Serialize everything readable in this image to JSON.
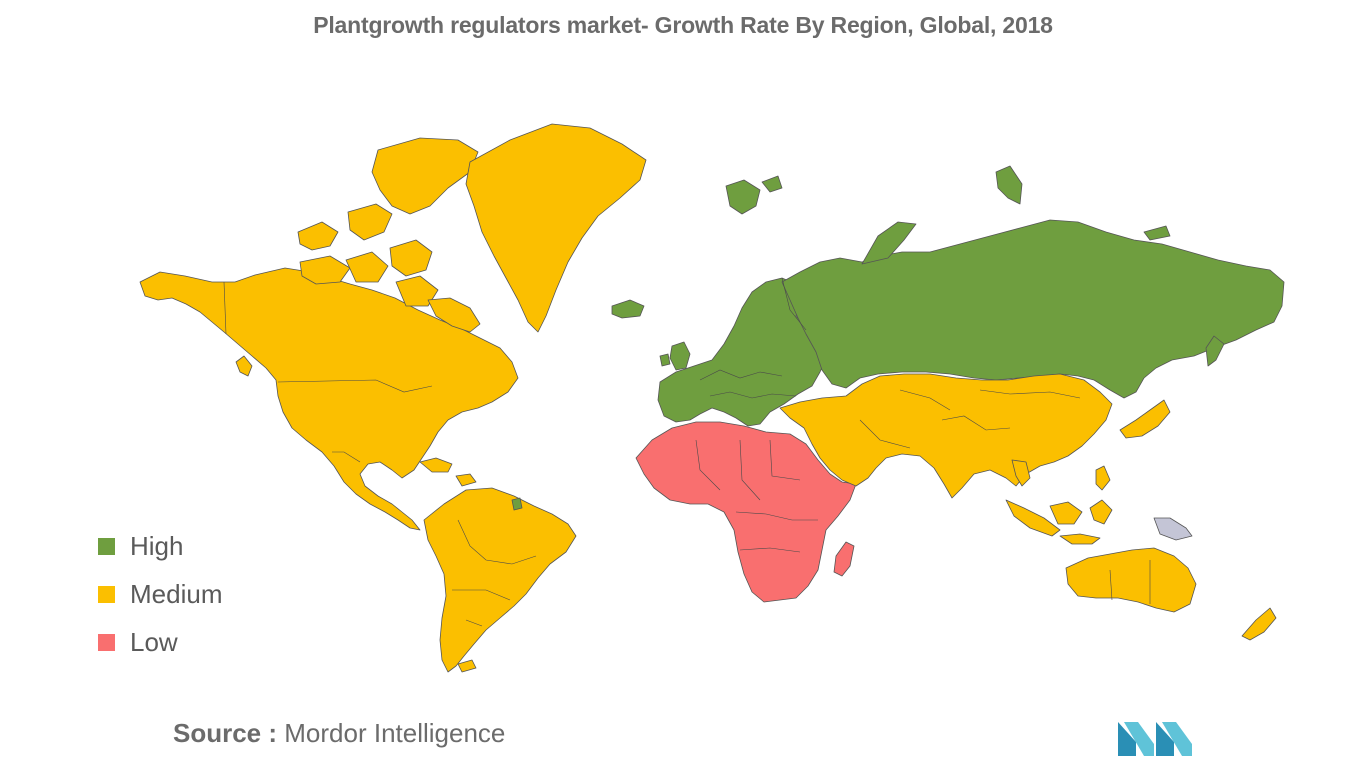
{
  "title": "Plantgrowth regulators market- Growth Rate By Region, Global, 2018",
  "colors": {
    "high": "#6f9e3f",
    "medium": "#fbbf00",
    "low": "#f96f6f",
    "no_data": "#c4c5d6"
  },
  "legend": [
    {
      "key": "high",
      "label": "High"
    },
    {
      "key": "medium",
      "label": "Medium"
    },
    {
      "key": "low",
      "label": "Low"
    }
  ],
  "regions": [
    {
      "name": "North America",
      "level": "medium"
    },
    {
      "name": "South America",
      "level": "medium"
    },
    {
      "name": "Europe",
      "level": "high"
    },
    {
      "name": "Russia",
      "level": "high"
    },
    {
      "name": "Asia-Pacific",
      "level": "medium"
    },
    {
      "name": "Middle East",
      "level": "medium"
    },
    {
      "name": "Africa",
      "level": "low"
    }
  ],
  "source": {
    "key": "Source :",
    "value": "Mordor Intelligence"
  },
  "logo": {
    "icon": "mordor-intelligence-logo-icon"
  }
}
